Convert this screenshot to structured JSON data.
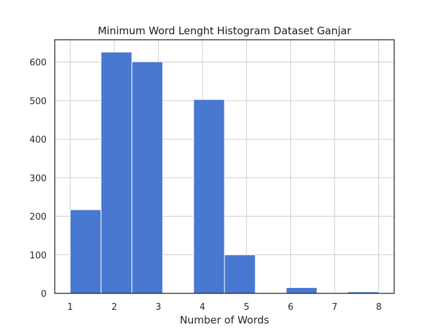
{
  "chart_data": {
    "type": "bar",
    "title": "Minimum Word Lenght Histogram Dataset Ganjar",
    "xlabel": "Number of Words",
    "ylabel": "",
    "xlim": [
      0.65,
      8.35
    ],
    "ylim": [
      0,
      658
    ],
    "x_ticks": [
      1,
      2,
      3,
      4,
      5,
      6,
      7,
      8
    ],
    "y_ticks": [
      0,
      100,
      200,
      300,
      400,
      500,
      600
    ],
    "grid": true,
    "bins": [
      {
        "start": 1.0,
        "end": 1.7,
        "value": 217
      },
      {
        "start": 1.7,
        "end": 2.4,
        "value": 626
      },
      {
        "start": 2.4,
        "end": 3.1,
        "value": 601
      },
      {
        "start": 3.1,
        "end": 3.8,
        "value": 0
      },
      {
        "start": 3.8,
        "end": 4.5,
        "value": 503
      },
      {
        "start": 4.5,
        "end": 5.2,
        "value": 100
      },
      {
        "start": 5.2,
        "end": 5.9,
        "value": 0
      },
      {
        "start": 5.9,
        "end": 6.6,
        "value": 15
      },
      {
        "start": 6.6,
        "end": 7.3,
        "value": 1
      },
      {
        "start": 7.3,
        "end": 8.0,
        "value": 4
      }
    ],
    "colors": {
      "bar": "#4878cf",
      "grid": "#cccccc"
    }
  }
}
